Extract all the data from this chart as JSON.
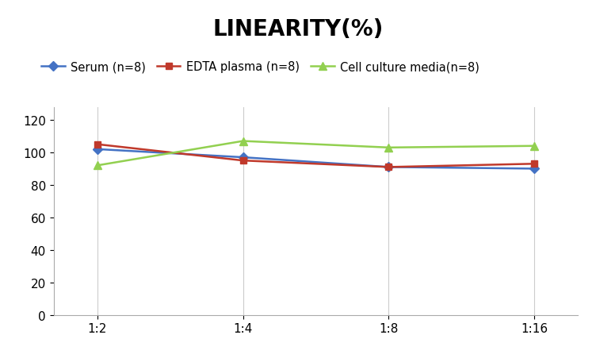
{
  "title": "LINEARITY(%)",
  "x_labels": [
    "1:2",
    "1:4",
    "1:8",
    "1:16"
  ],
  "x_positions": [
    0,
    1,
    2,
    3
  ],
  "series": [
    {
      "label": "Serum (n=8)",
      "values": [
        102,
        97,
        91,
        90
      ],
      "color": "#4472C4",
      "marker": "D",
      "marker_size": 6,
      "linewidth": 1.8
    },
    {
      "label": "EDTA plasma (n=8)",
      "values": [
        105,
        95,
        91,
        93
      ],
      "color": "#C0392B",
      "marker": "s",
      "marker_size": 6,
      "linewidth": 1.8
    },
    {
      "label": "Cell culture media(n=8)",
      "values": [
        92,
        107,
        103,
        104
      ],
      "color": "#92D050",
      "marker": "^",
      "marker_size": 7,
      "linewidth": 1.8
    }
  ],
  "ylim": [
    0,
    128
  ],
  "yticks": [
    0,
    20,
    40,
    60,
    80,
    100,
    120
  ],
  "grid_color": "#cccccc",
  "background_color": "#ffffff",
  "title_fontsize": 20,
  "legend_fontsize": 10.5,
  "tick_fontsize": 11
}
